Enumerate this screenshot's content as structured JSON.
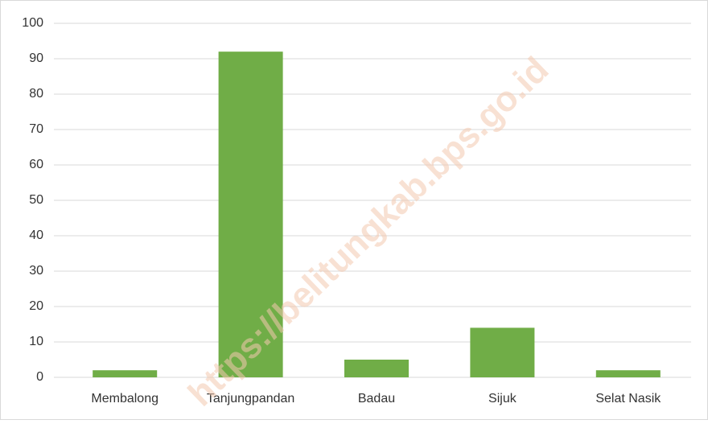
{
  "chart_data": {
    "type": "bar",
    "watermark": "https://belitungkab.bps.go.id",
    "categories": [
      "Membalong",
      "Tanjungpandan",
      "Badau",
      "Sijuk",
      "Selat Nasik"
    ],
    "values": [
      2,
      92,
      5,
      14,
      2
    ],
    "color": "#70ad47",
    "ylim": [
      0,
      100
    ],
    "yticks": [
      0,
      10,
      20,
      30,
      40,
      50,
      60,
      70,
      80,
      90,
      100
    ],
    "grid": true
  }
}
